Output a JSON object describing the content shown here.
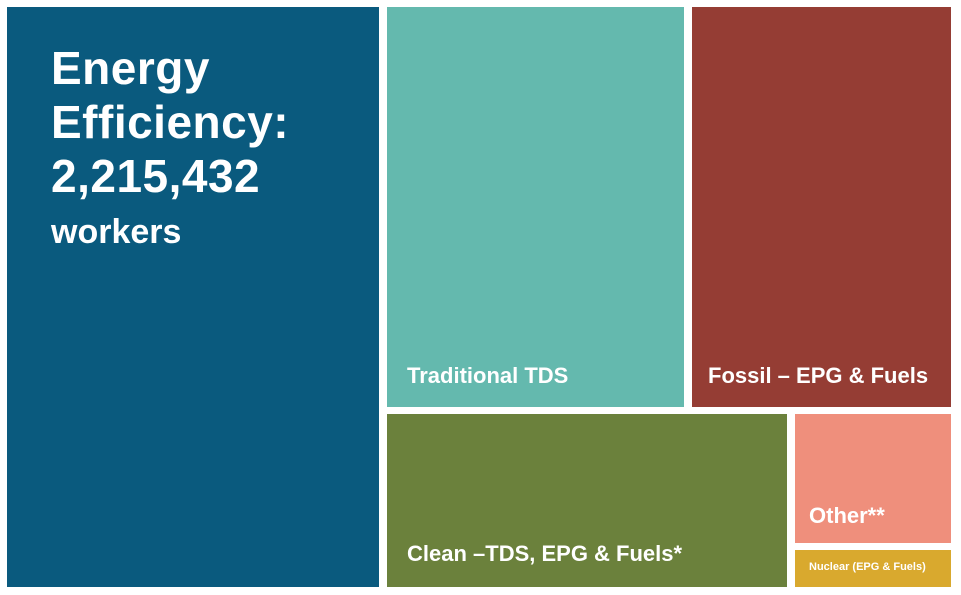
{
  "chart_data": {
    "type": "treemap",
    "title": "",
    "colors": {
      "energy_efficiency": "#0a5a7e",
      "traditional_tds": "#64b9ae",
      "fossil": "#953d34",
      "clean": "#6b813c",
      "other": "#ef8f7c",
      "nuclear": "#d9a92e"
    },
    "tiles": [
      {
        "key": "energy_efficiency",
        "label_line1": "Energy",
        "label_line2": "Efficiency:",
        "value_text": "2,215,432",
        "unit": "workers"
      },
      {
        "key": "traditional_tds",
        "label": "Traditional TDS"
      },
      {
        "key": "fossil",
        "label": "Fossil – EPG & Fuels"
      },
      {
        "key": "clean",
        "label": "Clean –TDS, EPG & Fuels*"
      },
      {
        "key": "other",
        "label": "Other**"
      },
      {
        "key": "nuclear",
        "label": "Nuclear (EPG & Fuels)"
      }
    ]
  }
}
